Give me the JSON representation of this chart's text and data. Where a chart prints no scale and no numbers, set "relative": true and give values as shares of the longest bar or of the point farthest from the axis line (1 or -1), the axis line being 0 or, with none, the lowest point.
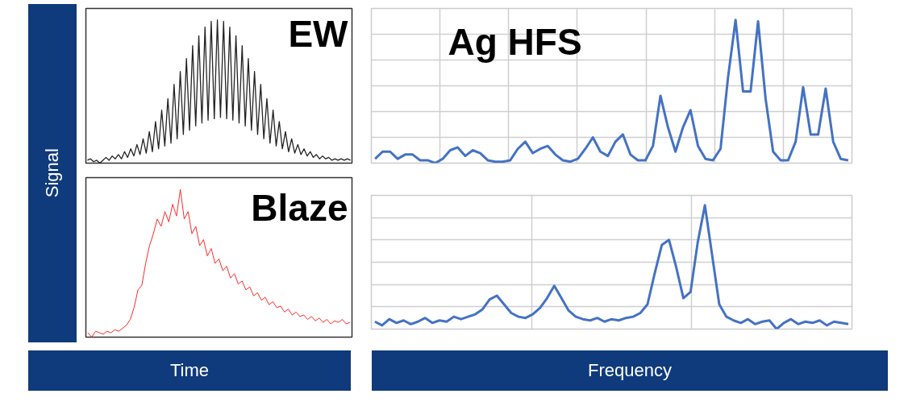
{
  "chart_data": [
    {
      "type": "line",
      "title": "EW",
      "ylabel": "Signal",
      "relative": true,
      "grid": false,
      "categories": [
        null,
        null,
        null,
        null,
        null,
        null,
        null,
        null,
        null,
        null,
        null,
        null,
        null,
        null,
        null,
        null,
        null,
        null,
        null,
        null,
        null,
        null,
        null,
        null,
        null,
        null,
        null,
        null,
        null,
        null,
        null,
        null,
        null,
        null,
        null,
        null,
        null,
        null,
        null,
        null,
        null,
        null,
        null,
        null,
        null,
        null,
        null,
        null,
        null,
        null,
        null,
        null,
        null,
        null,
        null,
        null,
        null,
        null,
        null,
        null,
        null,
        null,
        null,
        null,
        null,
        null,
        null,
        null,
        null,
        null,
        null,
        null,
        null,
        null,
        null,
        null,
        null,
        null,
        null,
        null,
        null,
        null,
        null,
        null,
        null,
        null
      ],
      "series": [
        {
          "color": "#222222",
          "values": [
            0.02,
            0.03,
            0.01,
            0.02,
            0,
            0.02,
            0.04,
            0.02,
            0.05,
            0.03,
            0.06,
            0.03,
            0.08,
            0.04,
            0.1,
            0.05,
            0.13,
            0.06,
            0.17,
            0.07,
            0.22,
            0.08,
            0.29,
            0.1,
            0.37,
            0.12,
            0.45,
            0.14,
            0.55,
            0.17,
            0.64,
            0.2,
            0.73,
            0.23,
            0.82,
            0.26,
            0.89,
            0.28,
            0.95,
            0.3,
            0.99,
            0.31,
            1.0,
            0.32,
            0.99,
            0.31,
            0.95,
            0.3,
            0.89,
            0.28,
            0.82,
            0.26,
            0.73,
            0.23,
            0.64,
            0.2,
            0.55,
            0.17,
            0.45,
            0.14,
            0.37,
            0.12,
            0.29,
            0.1,
            0.22,
            0.08,
            0.17,
            0.07,
            0.13,
            0.06,
            0.1,
            0.05,
            0.08,
            0.04,
            0.06,
            0.03,
            0.05,
            0.03,
            0.04,
            0.02,
            0.03,
            0.02,
            0.03,
            0.02,
            0.03,
            0.02
          ]
        }
      ]
    },
    {
      "type": "line",
      "title": "Blaze",
      "xlabel": "Time",
      "relative": true,
      "grid": false,
      "categories": [
        null,
        null,
        null,
        null,
        null,
        null,
        null,
        null,
        null,
        null,
        null,
        null,
        null,
        null,
        null,
        null,
        null,
        null,
        null,
        null,
        null,
        null,
        null,
        null,
        null,
        null,
        null,
        null,
        null,
        null,
        null,
        null,
        null,
        null,
        null,
        null,
        null,
        null,
        null,
        null,
        null,
        null,
        null,
        null,
        null,
        null,
        null,
        null,
        null,
        null,
        null,
        null,
        null,
        null,
        null,
        null,
        null,
        null,
        null,
        null,
        null,
        null,
        null,
        null,
        null,
        null,
        null,
        null,
        null
      ],
      "series": [
        {
          "color": "#ff2a2a",
          "values": [
            0.03,
            0,
            0.04,
            0.03,
            0.02,
            0.04,
            0.03,
            0.05,
            0.04,
            0.06,
            0.08,
            0.12,
            0.2,
            0.32,
            0.35,
            0.5,
            0.62,
            0.7,
            0.8,
            0.75,
            0.85,
            0.78,
            0.9,
            0.82,
            1.0,
            0.8,
            0.85,
            0.7,
            0.75,
            0.62,
            0.66,
            0.55,
            0.6,
            0.5,
            0.53,
            0.45,
            0.48,
            0.4,
            0.43,
            0.36,
            0.38,
            0.32,
            0.34,
            0.28,
            0.3,
            0.25,
            0.27,
            0.22,
            0.24,
            0.2,
            0.21,
            0.17,
            0.19,
            0.15,
            0.17,
            0.14,
            0.15,
            0.12,
            0.14,
            0.11,
            0.13,
            0.1,
            0.12,
            0.09,
            0.11,
            0.1,
            0.12,
            0.09,
            0.1
          ]
        }
      ]
    },
    {
      "type": "line",
      "title": "Ag HFS",
      "relative": true,
      "grid": true,
      "categories": [
        null,
        null,
        null,
        null,
        null,
        null,
        null,
        null,
        null,
        null,
        null,
        null,
        null,
        null,
        null,
        null,
        null,
        null,
        null,
        null,
        null,
        null,
        null,
        null,
        null,
        null,
        null,
        null,
        null,
        null,
        null,
        null,
        null,
        null,
        null,
        null,
        null,
        null,
        null,
        null,
        null,
        null,
        null,
        null,
        null,
        null,
        null,
        null,
        null,
        null,
        null,
        null,
        null,
        null,
        null,
        null,
        null,
        null,
        null,
        null,
        null,
        null,
        null,
        null
      ],
      "series": [
        {
          "color": "#4472c4",
          "values": [
            0.03,
            0.08,
            0.08,
            0.03,
            0.06,
            0.06,
            0.02,
            0.02,
            0,
            0.03,
            0.09,
            0.11,
            0.05,
            0.09,
            0.07,
            0.02,
            0.01,
            0.01,
            0.02,
            0.1,
            0.15,
            0.07,
            0.1,
            0.12,
            0.06,
            0.02,
            0.01,
            0.03,
            0.1,
            0.18,
            0.08,
            0.05,
            0.15,
            0.2,
            0.06,
            0.02,
            0.02,
            0.12,
            0.47,
            0.25,
            0.08,
            0.25,
            0.37,
            0.12,
            0.03,
            0.02,
            0.1,
            0.6,
            1.0,
            0.5,
            0.5,
            0.99,
            0.45,
            0.08,
            0.02,
            0.02,
            0.15,
            0.53,
            0.2,
            0.2,
            0.52,
            0.15,
            0.03,
            0.02
          ]
        }
      ]
    },
    {
      "type": "line",
      "xlabel": "Frequency",
      "relative": true,
      "grid": true,
      "categories": [
        null,
        null,
        null,
        null,
        null,
        null,
        null,
        null,
        null,
        null,
        null,
        null,
        null,
        null,
        null,
        null,
        null,
        null,
        null,
        null,
        null,
        null,
        null,
        null,
        null,
        null,
        null,
        null,
        null,
        null,
        null,
        null,
        null,
        null,
        null,
        null,
        null,
        null,
        null,
        null,
        null,
        null,
        null,
        null,
        null,
        null,
        null,
        null,
        null,
        null,
        null,
        null,
        null,
        null,
        null,
        null,
        null,
        null,
        null,
        null,
        null,
        null,
        null,
        null,
        null,
        null,
        null
      ],
      "series": [
        {
          "color": "#4472c4",
          "values": [
            0.06,
            0.03,
            0.08,
            0.05,
            0.07,
            0.04,
            0.06,
            0.09,
            0.05,
            0.07,
            0.06,
            0.1,
            0.08,
            0.1,
            0.12,
            0.16,
            0.24,
            0.27,
            0.2,
            0.13,
            0.1,
            0.09,
            0.12,
            0.17,
            0.25,
            0.35,
            0.25,
            0.15,
            0.1,
            0.08,
            0.07,
            0.09,
            0.06,
            0.08,
            0.07,
            0.09,
            0.1,
            0.13,
            0.2,
            0.45,
            0.68,
            0.72,
            0.5,
            0.25,
            0.3,
            0.7,
            1.0,
            0.6,
            0.2,
            0.1,
            0.07,
            0.05,
            0.08,
            0.04,
            0.06,
            0.07,
            0,
            0.05,
            0.08,
            0.04,
            0.06,
            0.05,
            0.07,
            0.03,
            0.06,
            0.05,
            0.04
          ]
        }
      ]
    }
  ]
}
